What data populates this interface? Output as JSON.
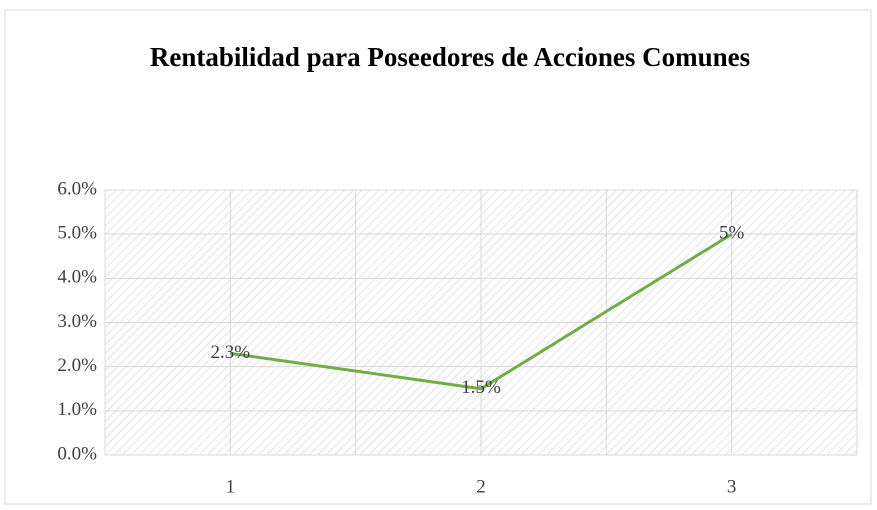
{
  "chart_data": {
    "type": "line",
    "title": "Rentabilidad  para  Poseedores de Acciones Comunes",
    "categories": [
      "1",
      "2",
      "3"
    ],
    "series": [
      {
        "name": "Rentabilidad",
        "color": "#70ad47",
        "values": [
          2.3,
          1.5,
          5
        ],
        "value_labels": [
          "2.3%",
          "1.5%",
          "5%"
        ]
      }
    ],
    "ylim": [
      0,
      6
    ],
    "yticks": [
      {
        "value": 0,
        "label": "0.0%"
      },
      {
        "value": 1,
        "label": "1.0%"
      },
      {
        "value": 2,
        "label": "2.0%"
      },
      {
        "value": 3,
        "label": "3.0%"
      },
      {
        "value": 4,
        "label": "4.0%"
      },
      {
        "value": 5,
        "label": "5.0%"
      },
      {
        "value": 6,
        "label": "6.0%"
      }
    ],
    "grid": true
  }
}
